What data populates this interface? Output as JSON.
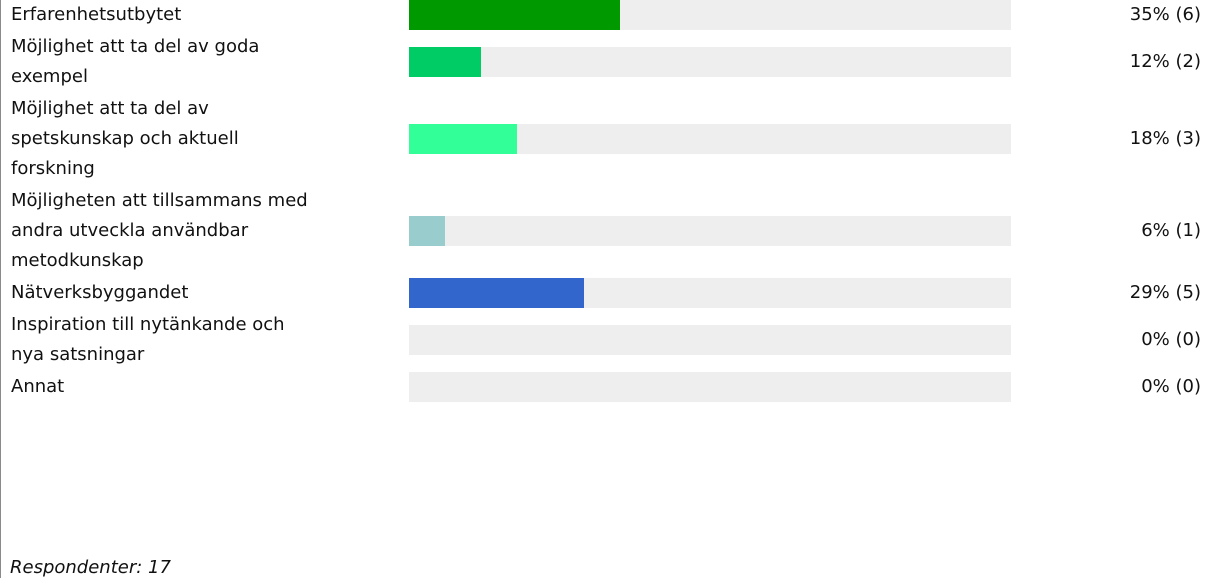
{
  "chart_data": {
    "type": "bar",
    "orientation": "horizontal",
    "categories": [
      "Erfarenhetsutbytet",
      "Möjlighet att ta del av goda exempel",
      "Möjlighet att ta del av spetskunskap och aktuell forskning",
      "Möjligheten att tillsammans med andra utveckla användbar metodkunskap",
      "Nätverksbyggandet",
      "Inspiration till nytänkande och nya satsningar",
      "Annat"
    ],
    "label_lines": [
      [
        "Erfarenhetsutbytet"
      ],
      [
        "Möjlighet att ta del av goda",
        "exempel"
      ],
      [
        "Möjlighet att ta del av",
        "spetskunskap och aktuell",
        "forskning"
      ],
      [
        "Möjligheten att tillsammans med",
        "andra utveckla användbar",
        "metodkunskap"
      ],
      [
        "Nätverksbyggandet"
      ],
      [
        "Inspiration till nytänkande och",
        "nya satsningar"
      ],
      [
        "Annat"
      ]
    ],
    "values": [
      35,
      12,
      18,
      6,
      29,
      0,
      0
    ],
    "counts": [
      6,
      2,
      3,
      1,
      5,
      0,
      0
    ],
    "value_labels": [
      "35% (6)",
      "12% (2)",
      "18% (3)",
      "6% (1)",
      "29% (5)",
      "0% (0)",
      "0% (0)"
    ],
    "colors": [
      "#009900",
      "#00cc66",
      "#33ff99",
      "#99cccc",
      "#3366cc",
      "#eeeeee",
      "#eeeeee"
    ],
    "track_color": "#eeeeee",
    "xlim": [
      0,
      100
    ],
    "grid": false
  },
  "footer": {
    "respondents": "Respondenter: 17"
  }
}
